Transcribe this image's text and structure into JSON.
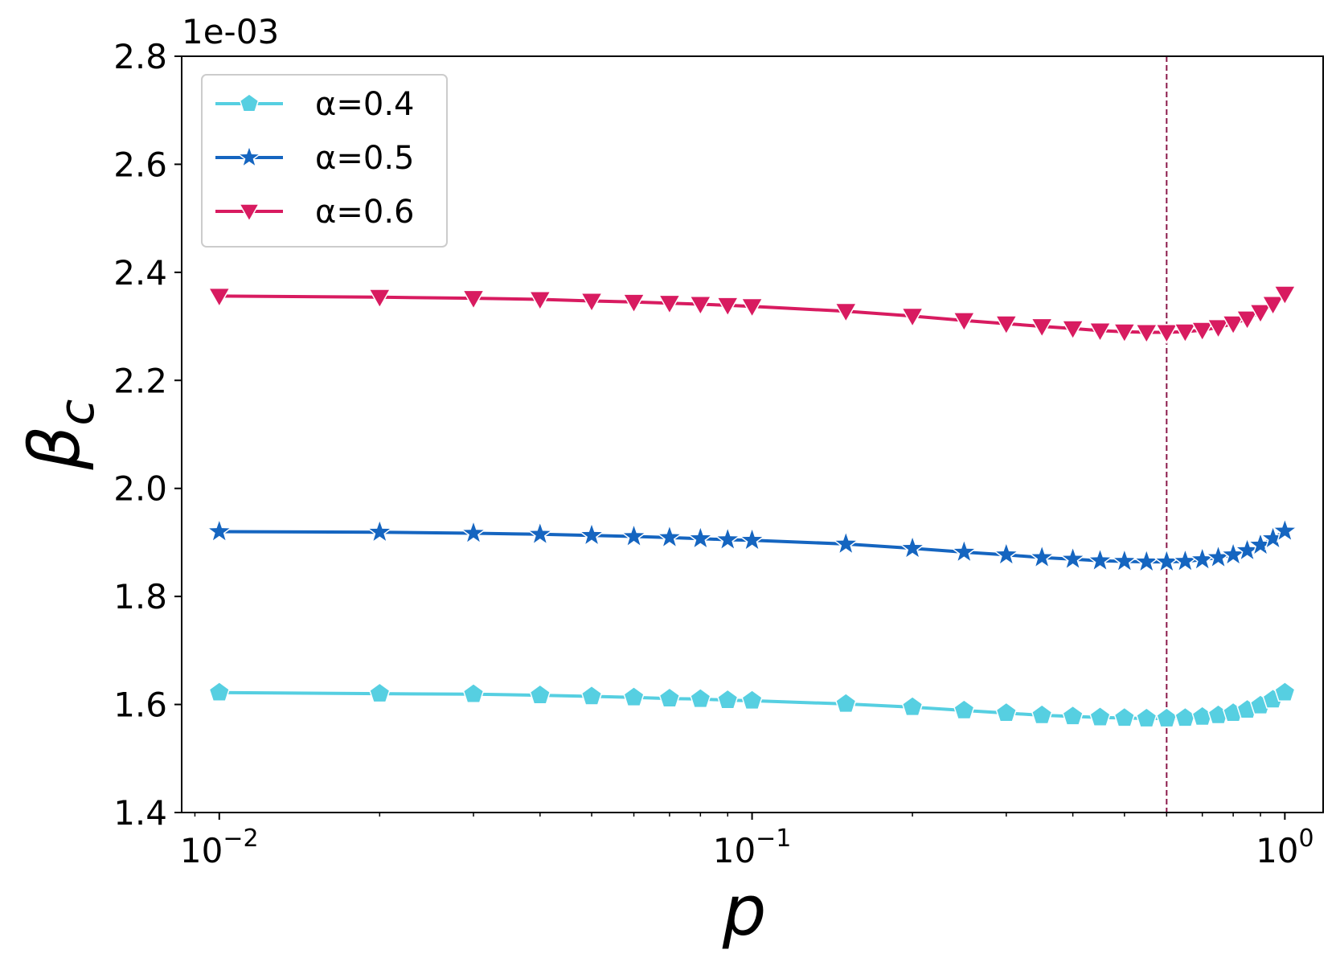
{
  "chart_data": {
    "type": "line",
    "xlabel": "p",
    "ylabel": "β",
    "ylabel_sub": "c",
    "x_scale": "log",
    "xlim": [
      0.0085,
      1.18
    ],
    "ylim": [
      1.4,
      2.8
    ],
    "y_multiplier_label": "1e-03",
    "x_ticks": [
      {
        "value": 0.01,
        "base": "10",
        "exp": "−2"
      },
      {
        "value": 0.1,
        "base": "10",
        "exp": "−1"
      },
      {
        "value": 1,
        "base": "10",
        "exp": "0"
      }
    ],
    "y_ticks": [
      {
        "value": 1.4,
        "label": "1.4"
      },
      {
        "value": 1.6,
        "label": "1.6"
      },
      {
        "value": 1.8,
        "label": "1.8"
      },
      {
        "value": 2.0,
        "label": "2.0"
      },
      {
        "value": 2.2,
        "label": "2.2"
      },
      {
        "value": 2.4,
        "label": "2.4"
      },
      {
        "value": 2.6,
        "label": "2.6"
      },
      {
        "value": 2.8,
        "label": "2.8"
      }
    ],
    "grid": false,
    "legend_position": "top-left",
    "vline": {
      "x": 0.6,
      "color": "#8b1a4a",
      "style": "dashed"
    },
    "x": [
      0.01,
      0.02,
      0.03,
      0.04,
      0.05,
      0.06,
      0.07,
      0.08,
      0.09,
      0.1,
      0.15,
      0.2,
      0.25,
      0.3,
      0.35,
      0.4,
      0.45,
      0.5,
      0.55,
      0.6,
      0.65,
      0.7,
      0.75,
      0.8,
      0.85,
      0.9,
      0.95,
      1.0
    ],
    "series": [
      {
        "name": "α=0.4",
        "legend_label": "α=0.4",
        "color": "#56cfe1",
        "marker": "pentagon",
        "values": [
          1.622,
          1.62,
          1.619,
          1.617,
          1.615,
          1.613,
          1.611,
          1.61,
          1.608,
          1.607,
          1.601,
          1.595,
          1.589,
          1.584,
          1.58,
          1.578,
          1.576,
          1.575,
          1.574,
          1.574,
          1.575,
          1.577,
          1.58,
          1.584,
          1.59,
          1.598,
          1.609,
          1.622
        ]
      },
      {
        "name": "α=0.5",
        "legend_label": "α=0.5",
        "color": "#1565c0",
        "marker": "star",
        "values": [
          1.92,
          1.919,
          1.917,
          1.915,
          1.913,
          1.911,
          1.909,
          1.907,
          1.905,
          1.904,
          1.897,
          1.889,
          1.882,
          1.877,
          1.872,
          1.869,
          1.866,
          1.865,
          1.864,
          1.864,
          1.865,
          1.868,
          1.872,
          1.877,
          1.885,
          1.895,
          1.907,
          1.921
        ]
      },
      {
        "name": "α=0.6",
        "legend_label": "α=0.6",
        "color": "#d81b60",
        "marker": "triangle-down",
        "values": [
          2.356,
          2.354,
          2.352,
          2.35,
          2.347,
          2.345,
          2.343,
          2.341,
          2.339,
          2.337,
          2.328,
          2.319,
          2.311,
          2.305,
          2.3,
          2.296,
          2.292,
          2.29,
          2.289,
          2.289,
          2.29,
          2.293,
          2.298,
          2.305,
          2.314,
          2.326,
          2.341,
          2.36
        ]
      }
    ]
  }
}
